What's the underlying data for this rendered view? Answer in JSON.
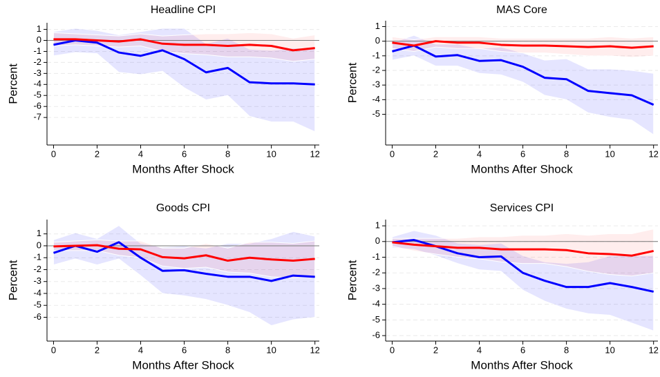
{
  "chart_data": [
    {
      "type": "line",
      "title": "Headline CPI",
      "x_label": "Months After Shock",
      "y_label": "Percent",
      "x": [
        0,
        1,
        2,
        3,
        4,
        5,
        6,
        7,
        8,
        9,
        10,
        11,
        12
      ],
      "xlim": [
        -0.3,
        12.2
      ],
      "xticks": [
        0,
        2,
        4,
        6,
        8,
        10,
        12
      ],
      "ylim": [
        -9.5,
        1.6
      ],
      "yticks": [
        1,
        0,
        -1,
        -2,
        -3,
        -4,
        -5,
        -6,
        -7
      ],
      "grid": true,
      "reference_line": 0,
      "series": [
        {
          "color": "#0000ff",
          "values": [
            -0.4,
            0,
            -0.2,
            -1.1,
            -1.4,
            -0.9,
            -1.7,
            -2.9,
            -2.5,
            -3.8,
            -3.9,
            -3.9,
            -4.0
          ],
          "upper": [
            0.8,
            1.1,
            0.9,
            0.5,
            0.8,
            1.1,
            1.1,
            -0.3,
            0.2,
            -0.8,
            -0.9,
            -0.7,
            -0.7
          ],
          "lower": [
            -1.4,
            -1.1,
            -1.2,
            -2.9,
            -3.1,
            -2.8,
            -4.3,
            -5.4,
            -5.0,
            -6.9,
            -7.4,
            -7.4,
            -8.3
          ]
        },
        {
          "color": "#ff0000",
          "values": [
            0.1,
            0.1,
            0,
            -0.1,
            0.1,
            -0.3,
            -0.4,
            -0.4,
            -0.5,
            -0.4,
            -0.5,
            -0.9,
            -0.7
          ],
          "upper": [
            0.7,
            0.6,
            0.5,
            0.4,
            0.6,
            0.4,
            0.5,
            0.6,
            0.6,
            0.7,
            0.6,
            0.2,
            0.5
          ],
          "lower": [
            -0.5,
            -0.4,
            -0.5,
            -0.6,
            -0.5,
            -1.0,
            -1.2,
            -1.3,
            -1.5,
            -1.5,
            -1.6,
            -1.9,
            -1.7
          ]
        }
      ]
    },
    {
      "type": "line",
      "title": "MAS Core",
      "x_label": "Months After Shock",
      "y_label": "Percent",
      "x": [
        0,
        1,
        2,
        3,
        4,
        5,
        6,
        7,
        8,
        9,
        10,
        11,
        12
      ],
      "xlim": [
        -0.3,
        12.2
      ],
      "xticks": [
        0,
        2,
        4,
        6,
        8,
        10,
        12
      ],
      "ylim": [
        -7.1,
        1.4
      ],
      "yticks": [
        1,
        0,
        -1,
        -2,
        -3,
        -4,
        -5
      ],
      "grid": true,
      "reference_line": 0,
      "series": [
        {
          "color": "#0000ff",
          "values": [
            -0.7,
            -0.3,
            -1.05,
            -0.95,
            -1.35,
            -1.3,
            -1.75,
            -2.5,
            -2.6,
            -3.4,
            -3.55,
            -3.7,
            -4.35
          ],
          "upper": [
            -0.1,
            0.4,
            -0.2,
            -0.2,
            -0.5,
            -0.4,
            -0.8,
            -1.3,
            -1.2,
            -1.9,
            -1.9,
            -2.0,
            -2.2
          ],
          "lower": [
            -1.3,
            -1.0,
            -1.7,
            -1.7,
            -2.2,
            -2.3,
            -2.8,
            -3.7,
            -4.0,
            -4.9,
            -5.2,
            -5.4,
            -6.4
          ]
        },
        {
          "color": "#ff0000",
          "values": [
            -0.1,
            -0.3,
            0,
            -0.1,
            -0.1,
            -0.25,
            -0.3,
            -0.3,
            -0.35,
            -0.4,
            -0.35,
            -0.45,
            -0.35
          ],
          "upper": [
            0.3,
            0.1,
            0.3,
            0.3,
            0.3,
            0.2,
            0.2,
            0.2,
            0.2,
            0.2,
            0.3,
            0.2,
            0.3
          ],
          "lower": [
            -0.5,
            -0.7,
            -0.4,
            -0.5,
            -0.5,
            -0.7,
            -0.8,
            -0.8,
            -0.9,
            -1.0,
            -1.0,
            -1.1,
            -1.0
          ]
        }
      ]
    },
    {
      "type": "line",
      "title": "Goods CPI",
      "x_label": "Months After Shock",
      "y_label": "Percent",
      "x": [
        0,
        1,
        2,
        3,
        4,
        5,
        6,
        7,
        8,
        9,
        10,
        11,
        12
      ],
      "xlim": [
        -0.3,
        12.2
      ],
      "xticks": [
        0,
        2,
        4,
        6,
        8,
        10,
        12
      ],
      "ylim": [
        -8,
        2.2
      ],
      "yticks": [
        1,
        0,
        -1,
        -2,
        -3,
        -4,
        -5,
        -6
      ],
      "grid": true,
      "reference_line": 0,
      "series": [
        {
          "color": "#0000ff",
          "values": [
            -0.6,
            0,
            -0.5,
            0.3,
            -1.0,
            -2.1,
            -2.05,
            -2.35,
            -2.6,
            -2.6,
            -2.95,
            -2.5,
            -2.6
          ],
          "upper": [
            0.5,
            1.1,
            0.6,
            1.7,
            0.2,
            -0.1,
            0,
            -0.2,
            0.2,
            0.2,
            0.6,
            1.2,
            0.8
          ],
          "lower": [
            -1.6,
            -1.1,
            -1.6,
            -1.1,
            -2.5,
            -4.0,
            -4.2,
            -4.5,
            -5.0,
            -5.6,
            -6.7,
            -6.2,
            -6.0
          ]
        },
        {
          "color": "#ff0000",
          "values": [
            -0.05,
            0,
            0.05,
            -0.25,
            -0.3,
            -0.95,
            -1.05,
            -0.8,
            -1.25,
            -1.0,
            -1.15,
            -1.25,
            -1.1
          ],
          "upper": [
            0.3,
            0.4,
            0.5,
            0.4,
            0.4,
            -0.2,
            -0.2,
            0.2,
            -0.2,
            0.3,
            0.3,
            0.2,
            0.4
          ],
          "lower": [
            -0.4,
            -0.4,
            -0.4,
            -0.8,
            -1.0,
            -1.7,
            -1.9,
            -1.8,
            -2.2,
            -2.3,
            -2.6,
            -2.7,
            -2.6
          ]
        }
      ]
    },
    {
      "type": "line",
      "title": "Services CPI",
      "x_label": "Months After Shock",
      "y_label": "Percent",
      "x": [
        0,
        1,
        2,
        3,
        4,
        5,
        6,
        7,
        8,
        9,
        10,
        11,
        12
      ],
      "xlim": [
        -0.3,
        12.2
      ],
      "xticks": [
        0,
        2,
        4,
        6,
        8,
        10,
        12
      ],
      "ylim": [
        -6.35,
        1.4
      ],
      "yticks": [
        1,
        0,
        -1,
        -2,
        -3,
        -4,
        -5,
        -6
      ],
      "grid": true,
      "reference_line": 0,
      "series": [
        {
          "color": "#0000ff",
          "values": [
            -0.05,
            0.1,
            -0.3,
            -0.75,
            -1.0,
            -0.95,
            -2.0,
            -2.5,
            -2.9,
            -2.9,
            -2.65,
            -2.9,
            -3.2
          ],
          "upper": [
            0.3,
            0.7,
            0.4,
            -0.1,
            -0.2,
            -0.1,
            -0.9,
            -1.3,
            -1.4,
            -1.3,
            -0.9,
            -0.9,
            -0.9
          ],
          "lower": [
            -0.4,
            -0.5,
            -0.9,
            -1.4,
            -1.8,
            -1.9,
            -3.1,
            -3.8,
            -4.3,
            -4.6,
            -4.7,
            -5.2,
            -5.7
          ]
        },
        {
          "color": "#ff0000",
          "values": [
            -0.05,
            -0.2,
            -0.3,
            -0.4,
            -0.4,
            -0.5,
            -0.5,
            -0.5,
            -0.55,
            -0.75,
            -0.8,
            -0.9,
            -0.6
          ],
          "upper": [
            0.2,
            0.2,
            0.2,
            0.2,
            0.3,
            0.3,
            0.4,
            0.4,
            0.5,
            0.4,
            0.5,
            0.5,
            0.8
          ],
          "lower": [
            -0.3,
            -0.6,
            -0.8,
            -1.0,
            -1.1,
            -1.3,
            -1.4,
            -1.4,
            -1.6,
            -1.9,
            -2.1,
            -2.2,
            -2.0
          ]
        }
      ]
    }
  ]
}
